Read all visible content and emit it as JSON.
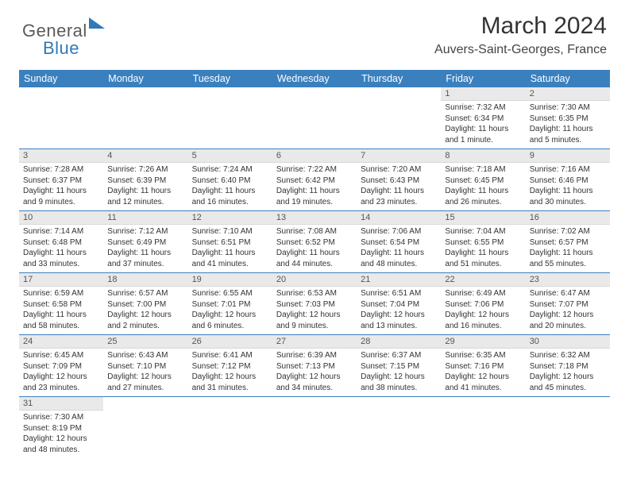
{
  "logo": {
    "text1": "General",
    "text2": "Blue"
  },
  "header": {
    "month_title": "March 2024",
    "location": "Auvers-Saint-Georges, France"
  },
  "colors": {
    "header_bg": "#3a80bf",
    "header_text": "#ffffff",
    "daynum_bg": "#e9e9e9",
    "border": "#3a80bf",
    "logo_gray": "#5a5a5a",
    "logo_blue": "#2f79b9"
  },
  "columns": [
    "Sunday",
    "Monday",
    "Tuesday",
    "Wednesday",
    "Thursday",
    "Friday",
    "Saturday"
  ],
  "weeks": [
    [
      null,
      null,
      null,
      null,
      null,
      {
        "n": "1",
        "sr": "Sunrise: 7:32 AM",
        "ss": "Sunset: 6:34 PM",
        "dl": "Daylight: 11 hours and 1 minute."
      },
      {
        "n": "2",
        "sr": "Sunrise: 7:30 AM",
        "ss": "Sunset: 6:35 PM",
        "dl": "Daylight: 11 hours and 5 minutes."
      }
    ],
    [
      {
        "n": "3",
        "sr": "Sunrise: 7:28 AM",
        "ss": "Sunset: 6:37 PM",
        "dl": "Daylight: 11 hours and 9 minutes."
      },
      {
        "n": "4",
        "sr": "Sunrise: 7:26 AM",
        "ss": "Sunset: 6:39 PM",
        "dl": "Daylight: 11 hours and 12 minutes."
      },
      {
        "n": "5",
        "sr": "Sunrise: 7:24 AM",
        "ss": "Sunset: 6:40 PM",
        "dl": "Daylight: 11 hours and 16 minutes."
      },
      {
        "n": "6",
        "sr": "Sunrise: 7:22 AM",
        "ss": "Sunset: 6:42 PM",
        "dl": "Daylight: 11 hours and 19 minutes."
      },
      {
        "n": "7",
        "sr": "Sunrise: 7:20 AM",
        "ss": "Sunset: 6:43 PM",
        "dl": "Daylight: 11 hours and 23 minutes."
      },
      {
        "n": "8",
        "sr": "Sunrise: 7:18 AM",
        "ss": "Sunset: 6:45 PM",
        "dl": "Daylight: 11 hours and 26 minutes."
      },
      {
        "n": "9",
        "sr": "Sunrise: 7:16 AM",
        "ss": "Sunset: 6:46 PM",
        "dl": "Daylight: 11 hours and 30 minutes."
      }
    ],
    [
      {
        "n": "10",
        "sr": "Sunrise: 7:14 AM",
        "ss": "Sunset: 6:48 PM",
        "dl": "Daylight: 11 hours and 33 minutes."
      },
      {
        "n": "11",
        "sr": "Sunrise: 7:12 AM",
        "ss": "Sunset: 6:49 PM",
        "dl": "Daylight: 11 hours and 37 minutes."
      },
      {
        "n": "12",
        "sr": "Sunrise: 7:10 AM",
        "ss": "Sunset: 6:51 PM",
        "dl": "Daylight: 11 hours and 41 minutes."
      },
      {
        "n": "13",
        "sr": "Sunrise: 7:08 AM",
        "ss": "Sunset: 6:52 PM",
        "dl": "Daylight: 11 hours and 44 minutes."
      },
      {
        "n": "14",
        "sr": "Sunrise: 7:06 AM",
        "ss": "Sunset: 6:54 PM",
        "dl": "Daylight: 11 hours and 48 minutes."
      },
      {
        "n": "15",
        "sr": "Sunrise: 7:04 AM",
        "ss": "Sunset: 6:55 PM",
        "dl": "Daylight: 11 hours and 51 minutes."
      },
      {
        "n": "16",
        "sr": "Sunrise: 7:02 AM",
        "ss": "Sunset: 6:57 PM",
        "dl": "Daylight: 11 hours and 55 minutes."
      }
    ],
    [
      {
        "n": "17",
        "sr": "Sunrise: 6:59 AM",
        "ss": "Sunset: 6:58 PM",
        "dl": "Daylight: 11 hours and 58 minutes."
      },
      {
        "n": "18",
        "sr": "Sunrise: 6:57 AM",
        "ss": "Sunset: 7:00 PM",
        "dl": "Daylight: 12 hours and 2 minutes."
      },
      {
        "n": "19",
        "sr": "Sunrise: 6:55 AM",
        "ss": "Sunset: 7:01 PM",
        "dl": "Daylight: 12 hours and 6 minutes."
      },
      {
        "n": "20",
        "sr": "Sunrise: 6:53 AM",
        "ss": "Sunset: 7:03 PM",
        "dl": "Daylight: 12 hours and 9 minutes."
      },
      {
        "n": "21",
        "sr": "Sunrise: 6:51 AM",
        "ss": "Sunset: 7:04 PM",
        "dl": "Daylight: 12 hours and 13 minutes."
      },
      {
        "n": "22",
        "sr": "Sunrise: 6:49 AM",
        "ss": "Sunset: 7:06 PM",
        "dl": "Daylight: 12 hours and 16 minutes."
      },
      {
        "n": "23",
        "sr": "Sunrise: 6:47 AM",
        "ss": "Sunset: 7:07 PM",
        "dl": "Daylight: 12 hours and 20 minutes."
      }
    ],
    [
      {
        "n": "24",
        "sr": "Sunrise: 6:45 AM",
        "ss": "Sunset: 7:09 PM",
        "dl": "Daylight: 12 hours and 23 minutes."
      },
      {
        "n": "25",
        "sr": "Sunrise: 6:43 AM",
        "ss": "Sunset: 7:10 PM",
        "dl": "Daylight: 12 hours and 27 minutes."
      },
      {
        "n": "26",
        "sr": "Sunrise: 6:41 AM",
        "ss": "Sunset: 7:12 PM",
        "dl": "Daylight: 12 hours and 31 minutes."
      },
      {
        "n": "27",
        "sr": "Sunrise: 6:39 AM",
        "ss": "Sunset: 7:13 PM",
        "dl": "Daylight: 12 hours and 34 minutes."
      },
      {
        "n": "28",
        "sr": "Sunrise: 6:37 AM",
        "ss": "Sunset: 7:15 PM",
        "dl": "Daylight: 12 hours and 38 minutes."
      },
      {
        "n": "29",
        "sr": "Sunrise: 6:35 AM",
        "ss": "Sunset: 7:16 PM",
        "dl": "Daylight: 12 hours and 41 minutes."
      },
      {
        "n": "30",
        "sr": "Sunrise: 6:32 AM",
        "ss": "Sunset: 7:18 PM",
        "dl": "Daylight: 12 hours and 45 minutes."
      }
    ],
    [
      {
        "n": "31",
        "sr": "Sunrise: 7:30 AM",
        "ss": "Sunset: 8:19 PM",
        "dl": "Daylight: 12 hours and 48 minutes."
      },
      null,
      null,
      null,
      null,
      null,
      null
    ]
  ]
}
